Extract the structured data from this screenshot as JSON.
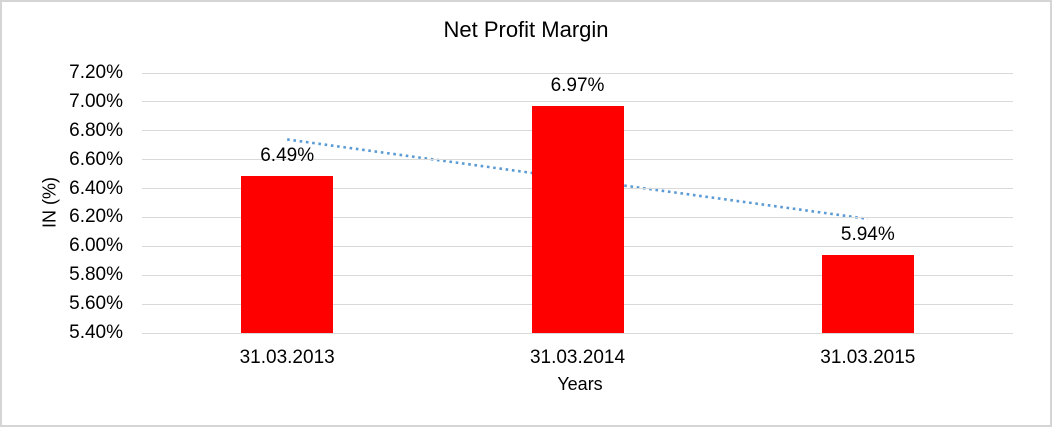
{
  "chart_data": {
    "type": "bar",
    "title": "Net Profit Margin",
    "xlabel": "Years",
    "ylabel": "IN (%)",
    "categories": [
      "31.03.2013",
      "31.03.2014",
      "31.03.2015"
    ],
    "values": [
      6.49,
      6.97,
      5.94
    ],
    "data_labels": [
      "6.49%",
      "6.97%",
      "5.94%"
    ],
    "y_ticks": [
      "7.20%",
      "7.00%",
      "6.80%",
      "6.60%",
      "6.40%",
      "6.20%",
      "6.00%",
      "5.80%",
      "5.60%",
      "5.40%"
    ],
    "ylim": [
      5.4,
      7.2
    ],
    "y_tick_step": 0.2,
    "grid": true,
    "legend": "none",
    "trendline": {
      "type": "linear",
      "style": "dotted",
      "start_value": 6.74,
      "end_value": 6.19
    },
    "colors": {
      "bar": "#FF0000",
      "trendline": "#5B9BD5",
      "gridline": "#D9D9D9",
      "frame_border": "#D5D5D5",
      "text": "#000000",
      "background": "#FFFFFF"
    }
  }
}
